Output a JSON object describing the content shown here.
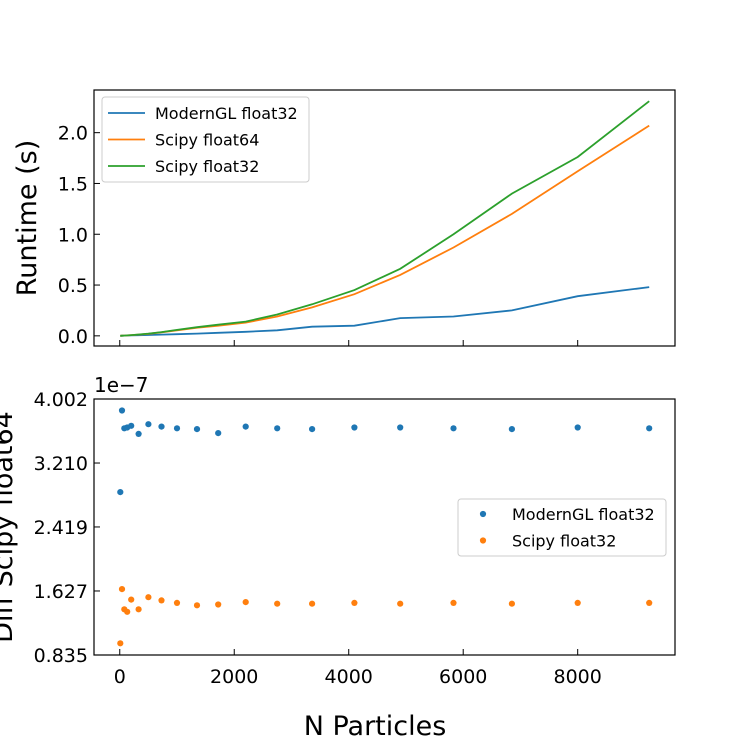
{
  "colors": {
    "blue": "#1f77b4",
    "orange": "#ff7f0e",
    "green": "#2ca02c"
  },
  "chart_data": [
    {
      "type": "line",
      "title": "",
      "xlabel": "",
      "ylabel": "Runtime (s)",
      "xlim": [
        -450,
        9700
      ],
      "ylim": [
        -0.1,
        2.42
      ],
      "xticks": [
        0,
        2000,
        4000,
        6000,
        8000
      ],
      "yticks": [
        0.0,
        0.5,
        1.0,
        1.5,
        2.0
      ],
      "ytick_labels": [
        "0.0",
        "0.5",
        "1.0",
        "1.5",
        "2.0"
      ],
      "legend_position": "top-left",
      "x": [
        10,
        40,
        80,
        130,
        200,
        330,
        500,
        730,
        1000,
        1350,
        1720,
        2200,
        2750,
        3360,
        4100,
        4900,
        5830,
        6850,
        8000,
        9250
      ],
      "series": [
        {
          "name": "ModernGL float32",
          "color": "#1f77b4",
          "values": [
            0.0005,
            0.001,
            0.002,
            0.003,
            0.004,
            0.006,
            0.008,
            0.012,
            0.016,
            0.022,
            0.03,
            0.04,
            0.055,
            0.09,
            0.1,
            0.175,
            0.19,
            0.25,
            0.39,
            0.48
          ]
        },
        {
          "name": "Scipy float64",
          "color": "#ff7f0e",
          "values": [
            0.0005,
            0.001,
            0.002,
            0.004,
            0.007,
            0.012,
            0.02,
            0.035,
            0.055,
            0.08,
            0.1,
            0.13,
            0.19,
            0.28,
            0.41,
            0.6,
            0.87,
            1.2,
            1.62,
            2.07
          ]
        },
        {
          "name": "Scipy float32",
          "color": "#2ca02c",
          "values": [
            0.0005,
            0.001,
            0.002,
            0.004,
            0.007,
            0.013,
            0.022,
            0.037,
            0.058,
            0.085,
            0.11,
            0.14,
            0.21,
            0.31,
            0.45,
            0.66,
            1.0,
            1.4,
            1.76,
            2.31
          ]
        }
      ]
    },
    {
      "type": "scatter",
      "title": "",
      "xlabel": "N Particles",
      "ylabel": "Diff Scipy float64",
      "offset_label": "1e−7",
      "xlim": [
        -450,
        9700
      ],
      "ylim": [
        0.835,
        4.002
      ],
      "xticks": [
        0,
        2000,
        4000,
        6000,
        8000
      ],
      "xtick_labels": [
        "0",
        "2000",
        "4000",
        "6000",
        "8000"
      ],
      "yticks": [
        0.835,
        1.627,
        2.419,
        3.21,
        4.002
      ],
      "ytick_labels": [
        "0.835",
        "1.627",
        "2.419",
        "3.210",
        "4.002"
      ],
      "legend_position": "center-right",
      "x": [
        10,
        40,
        80,
        130,
        200,
        330,
        500,
        730,
        1000,
        1350,
        1720,
        2200,
        2750,
        3360,
        4100,
        4900,
        5830,
        6850,
        8000,
        9250
      ],
      "series": [
        {
          "name": "ModernGL float32",
          "color": "#1f77b4",
          "values": [
            2.85,
            3.86,
            3.64,
            3.65,
            3.67,
            3.57,
            3.69,
            3.66,
            3.64,
            3.63,
            3.58,
            3.66,
            3.64,
            3.63,
            3.65,
            3.65,
            3.64,
            3.63,
            3.65,
            3.64
          ]
        },
        {
          "name": "Scipy float32",
          "color": "#ff7f0e",
          "values": [
            0.98,
            1.65,
            1.4,
            1.37,
            1.52,
            1.4,
            1.55,
            1.51,
            1.48,
            1.45,
            1.46,
            1.49,
            1.47,
            1.47,
            1.48,
            1.47,
            1.48,
            1.47,
            1.48,
            1.48
          ]
        }
      ]
    }
  ]
}
